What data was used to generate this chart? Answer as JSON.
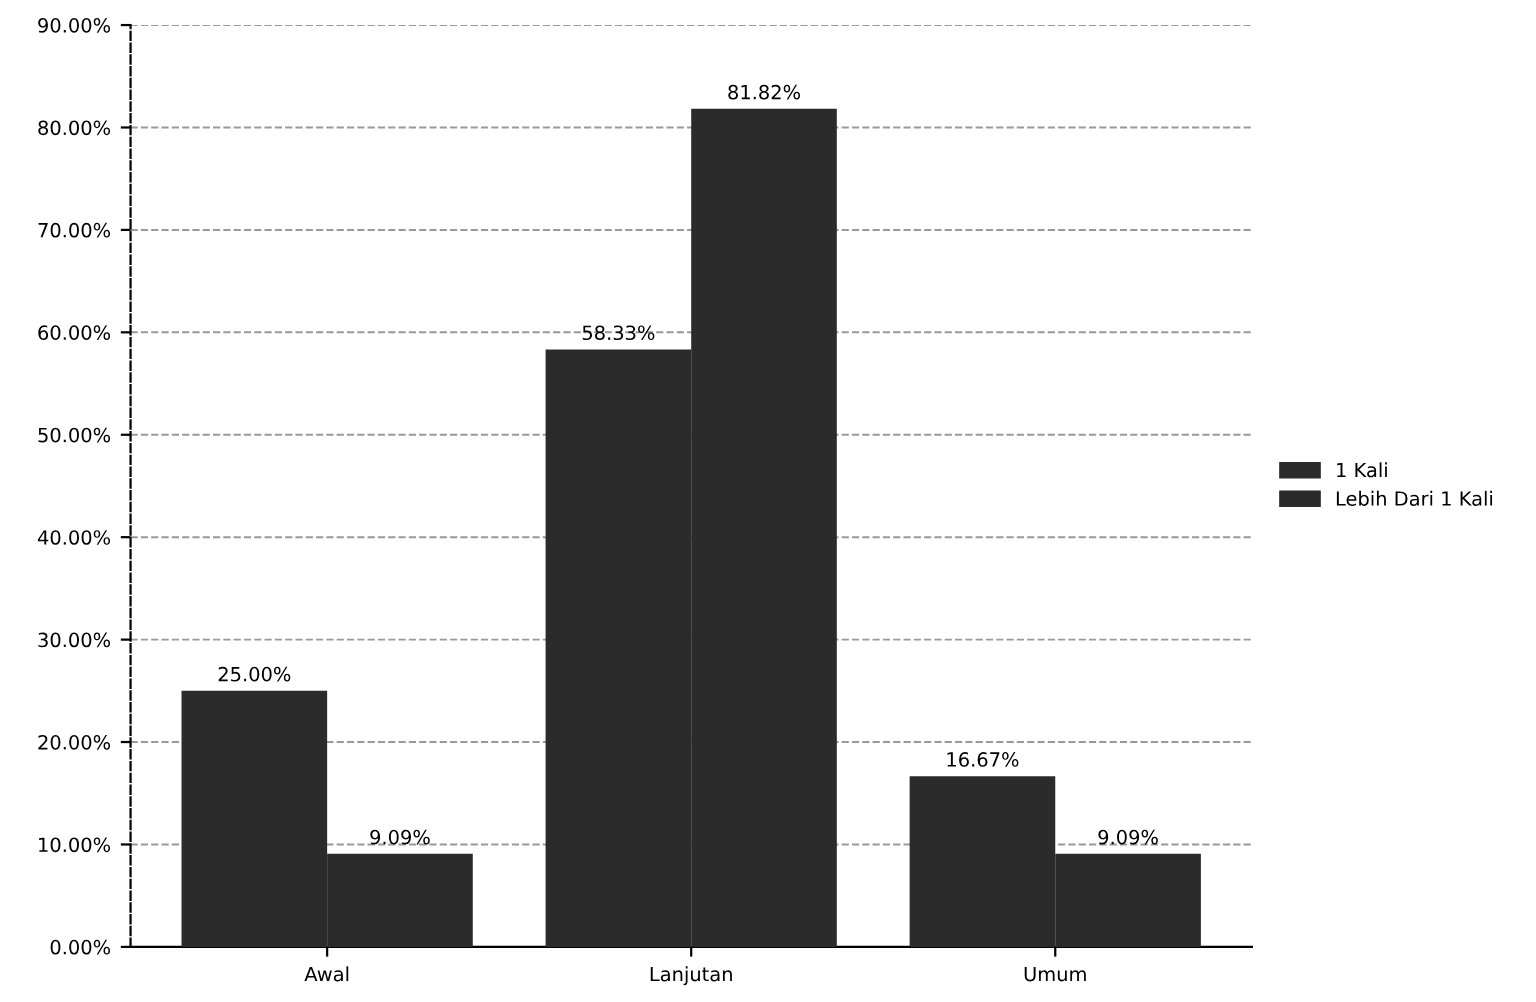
{
  "chart_data": {
    "type": "bar",
    "categories": [
      "Awal",
      "Lanjutan",
      "Umum"
    ],
    "series": [
      {
        "name": "1 Kali",
        "color": "#2b2b2b",
        "values": [
          25.0,
          58.33,
          16.67
        ],
        "value_labels": [
          "25.00%",
          "58.33%",
          "16.67%"
        ]
      },
      {
        "name": "Lebih Dari 1 Kali",
        "color": "#2b2b2b",
        "values": [
          9.09,
          81.82,
          9.09
        ],
        "value_labels": [
          "9.09%",
          "81.82%",
          "9.09%"
        ]
      }
    ],
    "ylim": [
      0,
      90
    ],
    "yticks": [
      {
        "value": 0,
        "label": "0.00%"
      },
      {
        "value": 10,
        "label": "10.00%"
      },
      {
        "value": 20,
        "label": "20.00%"
      },
      {
        "value": 30,
        "label": "30.00%"
      },
      {
        "value": 40,
        "label": "40.00%"
      },
      {
        "value": 50,
        "label": "50.00%"
      },
      {
        "value": 60,
        "label": "60.00%"
      },
      {
        "value": 70,
        "label": "70.00%"
      },
      {
        "value": 80,
        "label": "80.00%"
      },
      {
        "value": 90,
        "label": "90.00%"
      }
    ],
    "grid": "y",
    "legend": "right"
  }
}
